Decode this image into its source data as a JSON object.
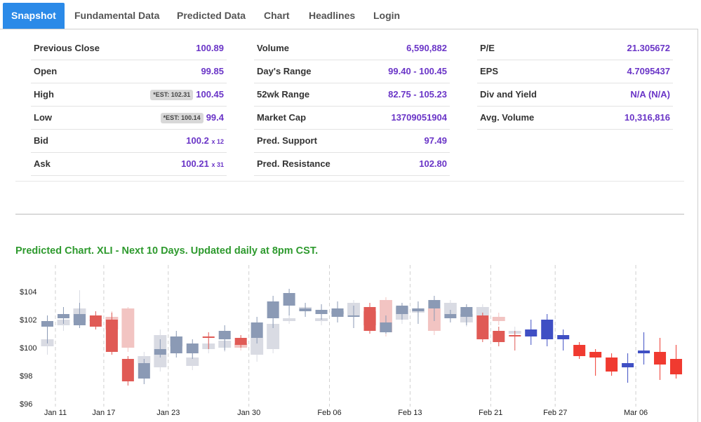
{
  "tabs": [
    "Snapshot",
    "Fundamental Data",
    "Predicted Data",
    "Chart",
    "Headlines",
    "Login"
  ],
  "stats": {
    "col1": [
      {
        "label": "Previous Close",
        "value": "100.89"
      },
      {
        "label": "Open",
        "value": "99.85"
      },
      {
        "label": "High",
        "est": "*EST: 102.31",
        "value": "100.45"
      },
      {
        "label": "Low",
        "est": "*EST: 100.14",
        "value": "99.4"
      },
      {
        "label": "Bid",
        "value": "100.2",
        "suffix": "x 12"
      },
      {
        "label": "Ask",
        "value": "100.21",
        "suffix": "x 31"
      }
    ],
    "col2": [
      {
        "label": "Volume",
        "value": "6,590,882"
      },
      {
        "label": "Day's Range",
        "value": "99.40 - 100.45"
      },
      {
        "label": "52wk Range",
        "value": "82.75 - 105.23"
      },
      {
        "label": "Market Cap",
        "value": "13709051904"
      },
      {
        "label": "Pred. Support",
        "value": "97.49"
      },
      {
        "label": "Pred. Resistance",
        "value": "102.80"
      }
    ],
    "col3": [
      {
        "label": "P/E",
        "value": "21.305672"
      },
      {
        "label": "EPS",
        "value": "4.7095437"
      },
      {
        "label": "Div and Yield",
        "value": "N/A (N/A)"
      },
      {
        "label": "Avg. Volume",
        "value": "10,316,816"
      }
    ]
  },
  "chart_title": "Predicted Chart. XLI - Next 10 Days. Updated daily at 8pm CST.",
  "chart_data": {
    "type": "candlestick",
    "title": "Predicted Chart. XLI - Next 10 Days. Updated daily at 8pm CST.",
    "ylim": [
      96,
      105.5
    ],
    "y_ticks": [
      96,
      98,
      100,
      102,
      104
    ],
    "y_tick_labels": [
      "$96",
      "$98",
      "$100",
      "$102",
      "$104"
    ],
    "x_tick_labels": [
      {
        "label": "Jan 11",
        "index": 0.5
      },
      {
        "label": "Jan 17",
        "index": 3.5
      },
      {
        "label": "Jan 23",
        "index": 7.5
      },
      {
        "label": "Jan 30",
        "index": 12.5
      },
      {
        "label": "Feb 06",
        "index": 17.5
      },
      {
        "label": "Feb 13",
        "index": 22.5
      },
      {
        "label": "Feb 21",
        "index": 27.5
      },
      {
        "label": "Feb 27",
        "index": 31.5
      },
      {
        "label": "Mar 06",
        "index": 36.5
      }
    ],
    "colors": {
      "hist_up": "#8b9ab5",
      "hist_down": "#e05a55",
      "ghost_up": "#d9dbe3",
      "ghost_down": "#f2c4c2",
      "pred_up": "#3f4fc4",
      "pred_down": "#f03a30",
      "grid": "#d0d0d0"
    },
    "candles": [
      {
        "open": 101.5,
        "close": 101.9,
        "high": 102.3,
        "low": 100.3,
        "kind": "hist"
      },
      {
        "open": 102.1,
        "close": 102.4,
        "high": 102.9,
        "low": 101.7,
        "kind": "hist"
      },
      {
        "open": 101.6,
        "close": 102.4,
        "high": 103.2,
        "low": 101.4,
        "kind": "hist"
      },
      {
        "open": 102.3,
        "close": 101.5,
        "high": 102.6,
        "low": 101.3,
        "kind": "hist"
      },
      {
        "open": 102.0,
        "close": 99.7,
        "high": 102.5,
        "low": 99.5,
        "kind": "hist"
      },
      {
        "open": 99.2,
        "close": 97.6,
        "high": 99.4,
        "low": 97.3,
        "kind": "hist"
      },
      {
        "open": 97.8,
        "close": 98.9,
        "high": 99.2,
        "low": 97.4,
        "kind": "hist"
      },
      {
        "open": 99.5,
        "close": 99.9,
        "high": 100.6,
        "low": 99.3,
        "kind": "hist"
      },
      {
        "open": 99.6,
        "close": 100.8,
        "high": 101.2,
        "low": 99.3,
        "kind": "hist"
      },
      {
        "open": 99.6,
        "close": 100.3,
        "high": 100.6,
        "low": 99.2,
        "kind": "hist"
      },
      {
        "open": 100.8,
        "close": 100.7,
        "high": 101.1,
        "low": 99.9,
        "kind": "hist"
      },
      {
        "open": 100.6,
        "close": 101.2,
        "high": 101.6,
        "low": 99.8,
        "kind": "hist"
      },
      {
        "open": 100.7,
        "close": 100.2,
        "high": 100.9,
        "low": 100.0,
        "kind": "hist"
      },
      {
        "open": 100.7,
        "close": 101.8,
        "high": 102.2,
        "low": 100.3,
        "kind": "hist"
      },
      {
        "open": 102.1,
        "close": 103.3,
        "high": 103.7,
        "low": 101.4,
        "kind": "hist"
      },
      {
        "open": 103.0,
        "close": 103.9,
        "high": 104.2,
        "low": 102.3,
        "kind": "hist"
      },
      {
        "open": 102.6,
        "close": 102.8,
        "high": 103.2,
        "low": 102.2,
        "kind": "hist"
      },
      {
        "open": 102.4,
        "close": 102.7,
        "high": 103.1,
        "low": 102.0,
        "kind": "hist"
      },
      {
        "open": 102.2,
        "close": 102.8,
        "high": 103.3,
        "low": 101.8,
        "kind": "hist"
      },
      {
        "open": 102.3,
        "close": 102.3,
        "high": 103.0,
        "low": 101.4,
        "kind": "hist"
      },
      {
        "open": 102.9,
        "close": 101.2,
        "high": 103.2,
        "low": 101.0,
        "kind": "hist"
      },
      {
        "open": 101.1,
        "close": 101.8,
        "high": 102.3,
        "low": 101.0,
        "kind": "hist"
      },
      {
        "open": 102.4,
        "close": 103.0,
        "high": 103.2,
        "low": 102.0,
        "kind": "hist"
      },
      {
        "open": 102.6,
        "close": 102.8,
        "high": 103.3,
        "low": 101.7,
        "kind": "hist"
      },
      {
        "open": 102.8,
        "close": 103.4,
        "high": 103.7,
        "low": 101.9,
        "kind": "hist"
      },
      {
        "open": 102.1,
        "close": 102.4,
        "high": 102.7,
        "low": 101.8,
        "kind": "hist"
      },
      {
        "open": 102.2,
        "close": 102.9,
        "high": 103.1,
        "low": 101.6,
        "kind": "hist"
      },
      {
        "open": 102.3,
        "close": 100.6,
        "high": 102.5,
        "low": 100.4,
        "kind": "hist"
      },
      {
        "open": 101.2,
        "close": 100.4,
        "high": 101.5,
        "low": 100.1,
        "kind": "hist"
      },
      {
        "open": 100.9,
        "close": 100.8,
        "high": 101.2,
        "low": 99.8,
        "kind": "hist"
      },
      {
        "open": 100.8,
        "close": 101.3,
        "high": 102.0,
        "low": 100.2,
        "kind": "pred"
      },
      {
        "open": 100.6,
        "close": 102.0,
        "high": 102.4,
        "low": 100.1,
        "kind": "pred"
      },
      {
        "open": 100.6,
        "close": 100.9,
        "high": 101.3,
        "low": 99.8,
        "kind": "pred"
      },
      {
        "open": 100.2,
        "close": 99.4,
        "high": 100.4,
        "low": 99.2,
        "kind": "pred"
      },
      {
        "open": 99.7,
        "close": 99.3,
        "high": 99.9,
        "low": 98.0,
        "kind": "pred"
      },
      {
        "open": 99.3,
        "close": 98.3,
        "high": 99.6,
        "low": 98.0,
        "kind": "pred"
      },
      {
        "open": 98.6,
        "close": 98.9,
        "high": 99.6,
        "low": 97.5,
        "kind": "pred"
      },
      {
        "open": 99.6,
        "close": 99.8,
        "high": 101.1,
        "low": 98.8,
        "kind": "pred"
      },
      {
        "open": 99.7,
        "close": 98.8,
        "high": 100.7,
        "low": 97.7,
        "kind": "pred"
      },
      {
        "open": 99.2,
        "close": 98.1,
        "high": 100.2,
        "low": 97.8,
        "kind": "pred"
      }
    ],
    "ghost_candles": [
      {
        "open": 100.1,
        "close": 100.6,
        "high": 100.9,
        "low": 99.5
      },
      {
        "open": 101.6,
        "close": 102.0,
        "high": 102.5,
        "low": 101.2
      },
      {
        "open": 101.8,
        "close": 102.8,
        "high": 104.1,
        "low": 101.5
      },
      {
        "open": 101.9,
        "close": 102.0,
        "high": 102.4,
        "low": 101.5
      },
      {
        "open": 102.2,
        "close": 101.3,
        "high": 102.6,
        "low": 101.0
      },
      {
        "open": 102.8,
        "close": 100.0,
        "high": 102.9,
        "low": 99.7
      },
      {
        "open": 98.9,
        "close": 99.4,
        "high": 99.7,
        "low": 98.6
      },
      {
        "open": 98.6,
        "close": 100.9,
        "high": 101.3,
        "low": 98.3
      },
      {
        "open": 100.1,
        "close": 100.8,
        "high": 101.0,
        "low": 99.5
      },
      {
        "open": 98.7,
        "close": 99.3,
        "high": 99.6,
        "low": 98.4
      },
      {
        "open": 99.9,
        "close": 100.3,
        "high": 100.6,
        "low": 99.6
      },
      {
        "open": 100.0,
        "close": 100.5,
        "high": 100.8,
        "low": 99.7
      },
      {
        "open": 100.3,
        "close": 100.0,
        "high": 100.6,
        "low": 99.8
      },
      {
        "open": 99.5,
        "close": 100.7,
        "high": 101.3,
        "low": 99.0
      },
      {
        "open": 99.9,
        "close": 101.7,
        "high": 102.0,
        "low": 99.6
      },
      {
        "open": 101.9,
        "close": 102.1,
        "high": 102.4,
        "low": 101.7
      },
      {
        "open": 102.6,
        "close": 102.9,
        "high": 103.1,
        "low": 102.3
      },
      {
        "open": 101.9,
        "close": 102.1,
        "high": 102.4,
        "low": 101.6
      },
      {
        "open": 102.4,
        "close": 102.6,
        "high": 102.9,
        "low": 102.1
      },
      {
        "open": 102.3,
        "close": 103.2,
        "high": 103.4,
        "low": 102.1
      },
      {
        "open": 102.6,
        "close": 101.6,
        "high": 102.9,
        "low": 101.3
      },
      {
        "open": 103.4,
        "close": 101.1,
        "high": 103.6,
        "low": 100.8
      },
      {
        "open": 102.0,
        "close": 102.9,
        "high": 103.1,
        "low": 101.7
      },
      {
        "open": 102.5,
        "close": 102.8,
        "high": 103.1,
        "low": 102.2
      },
      {
        "open": 102.8,
        "close": 101.2,
        "high": 103.0,
        "low": 100.9
      },
      {
        "open": 102.4,
        "close": 103.2,
        "high": 103.4,
        "low": 102.2
      },
      {
        "open": 101.8,
        "close": 102.4,
        "high": 102.6,
        "low": 101.5
      },
      {
        "open": 102.3,
        "close": 102.9,
        "high": 103.1,
        "low": 102.1
      },
      {
        "open": 102.2,
        "close": 101.9,
        "high": 102.5,
        "low": 101.6
      },
      {
        "open": 101.0,
        "close": 101.2,
        "high": 101.5,
        "low": 100.8
      }
    ]
  }
}
